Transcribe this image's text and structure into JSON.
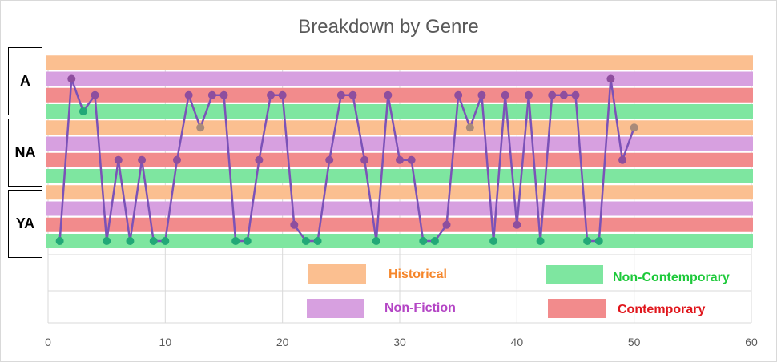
{
  "title": "Breakdown by Genre",
  "side_labels": [
    "A",
    "NA",
    "YA"
  ],
  "colors": {
    "line": "#7b52b8",
    "historical": "#fbbf90",
    "non_fiction": "#d7a0e0",
    "contemporary": "#f28b8c",
    "non_contemporary": "#7ee6a0",
    "grid": "#d9d9d9"
  },
  "legend": [
    {
      "key": "historical",
      "label": "Historical",
      "color": "#fbbf90",
      "text_color": "#f5862b"
    },
    {
      "key": "non_contemporary",
      "label": "Non-Contemporary",
      "color": "#7ee6a0",
      "text_color": "#1dc93a"
    },
    {
      "key": "non_fiction",
      "label": "Non-Fiction",
      "color": "#d7a0e0",
      "text_color": "#b445c5"
    },
    {
      "key": "contemporary",
      "label": "Contemporary",
      "color": "#f28b8c",
      "text_color": "#e0161c"
    }
  ],
  "chart_data": {
    "type": "line",
    "title": "Breakdown by Genre",
    "xlabel": "",
    "ylabel": "",
    "xlim": [
      0,
      60
    ],
    "xticks": [
      0,
      10,
      20,
      30,
      40,
      50,
      60
    ],
    "y_levels": [
      "YA Non-Contemporary",
      "YA Contemporary",
      "YA Non-Fiction",
      "YA Historical",
      "NA Non-Contemporary",
      "NA Contemporary",
      "NA Non-Fiction",
      "NA Historical",
      "A Non-Contemporary",
      "A Contemporary",
      "A Non-Fiction",
      "A Historical"
    ],
    "bands": [
      {
        "level": 1,
        "category": "non_contemporary"
      },
      {
        "level": 2,
        "category": "contemporary"
      },
      {
        "level": 3,
        "category": "non_fiction"
      },
      {
        "level": 4,
        "category": "historical"
      },
      {
        "level": 5,
        "category": "non_contemporary"
      },
      {
        "level": 6,
        "category": "contemporary"
      },
      {
        "level": 7,
        "category": "non_fiction"
      },
      {
        "level": 8,
        "category": "historical"
      },
      {
        "level": 9,
        "category": "non_contemporary"
      },
      {
        "level": 10,
        "category": "contemporary"
      },
      {
        "level": 11,
        "category": "non_fiction"
      },
      {
        "level": 12,
        "category": "historical"
      }
    ],
    "x": [
      1,
      2,
      3,
      4,
      5,
      6,
      7,
      8,
      9,
      10,
      11,
      12,
      13,
      14,
      15,
      16,
      17,
      18,
      19,
      20,
      21,
      22,
      23,
      24,
      25,
      26,
      27,
      28,
      29,
      30,
      31,
      32,
      33,
      34,
      35,
      36,
      37,
      38,
      39,
      40,
      41,
      42,
      43,
      44,
      45,
      46,
      47,
      48,
      49,
      50
    ],
    "y": [
      1,
      11,
      9,
      10,
      1,
      6,
      1,
      6,
      1,
      1,
      6,
      10,
      8,
      10,
      10,
      1,
      1,
      6,
      10,
      10,
      2,
      1,
      1,
      6,
      10,
      10,
      6,
      1,
      10,
      6,
      6,
      1,
      1,
      2,
      10,
      8,
      10,
      1,
      10,
      2,
      10,
      1,
      10,
      10,
      10,
      1,
      1,
      11,
      6,
      8
    ]
  }
}
